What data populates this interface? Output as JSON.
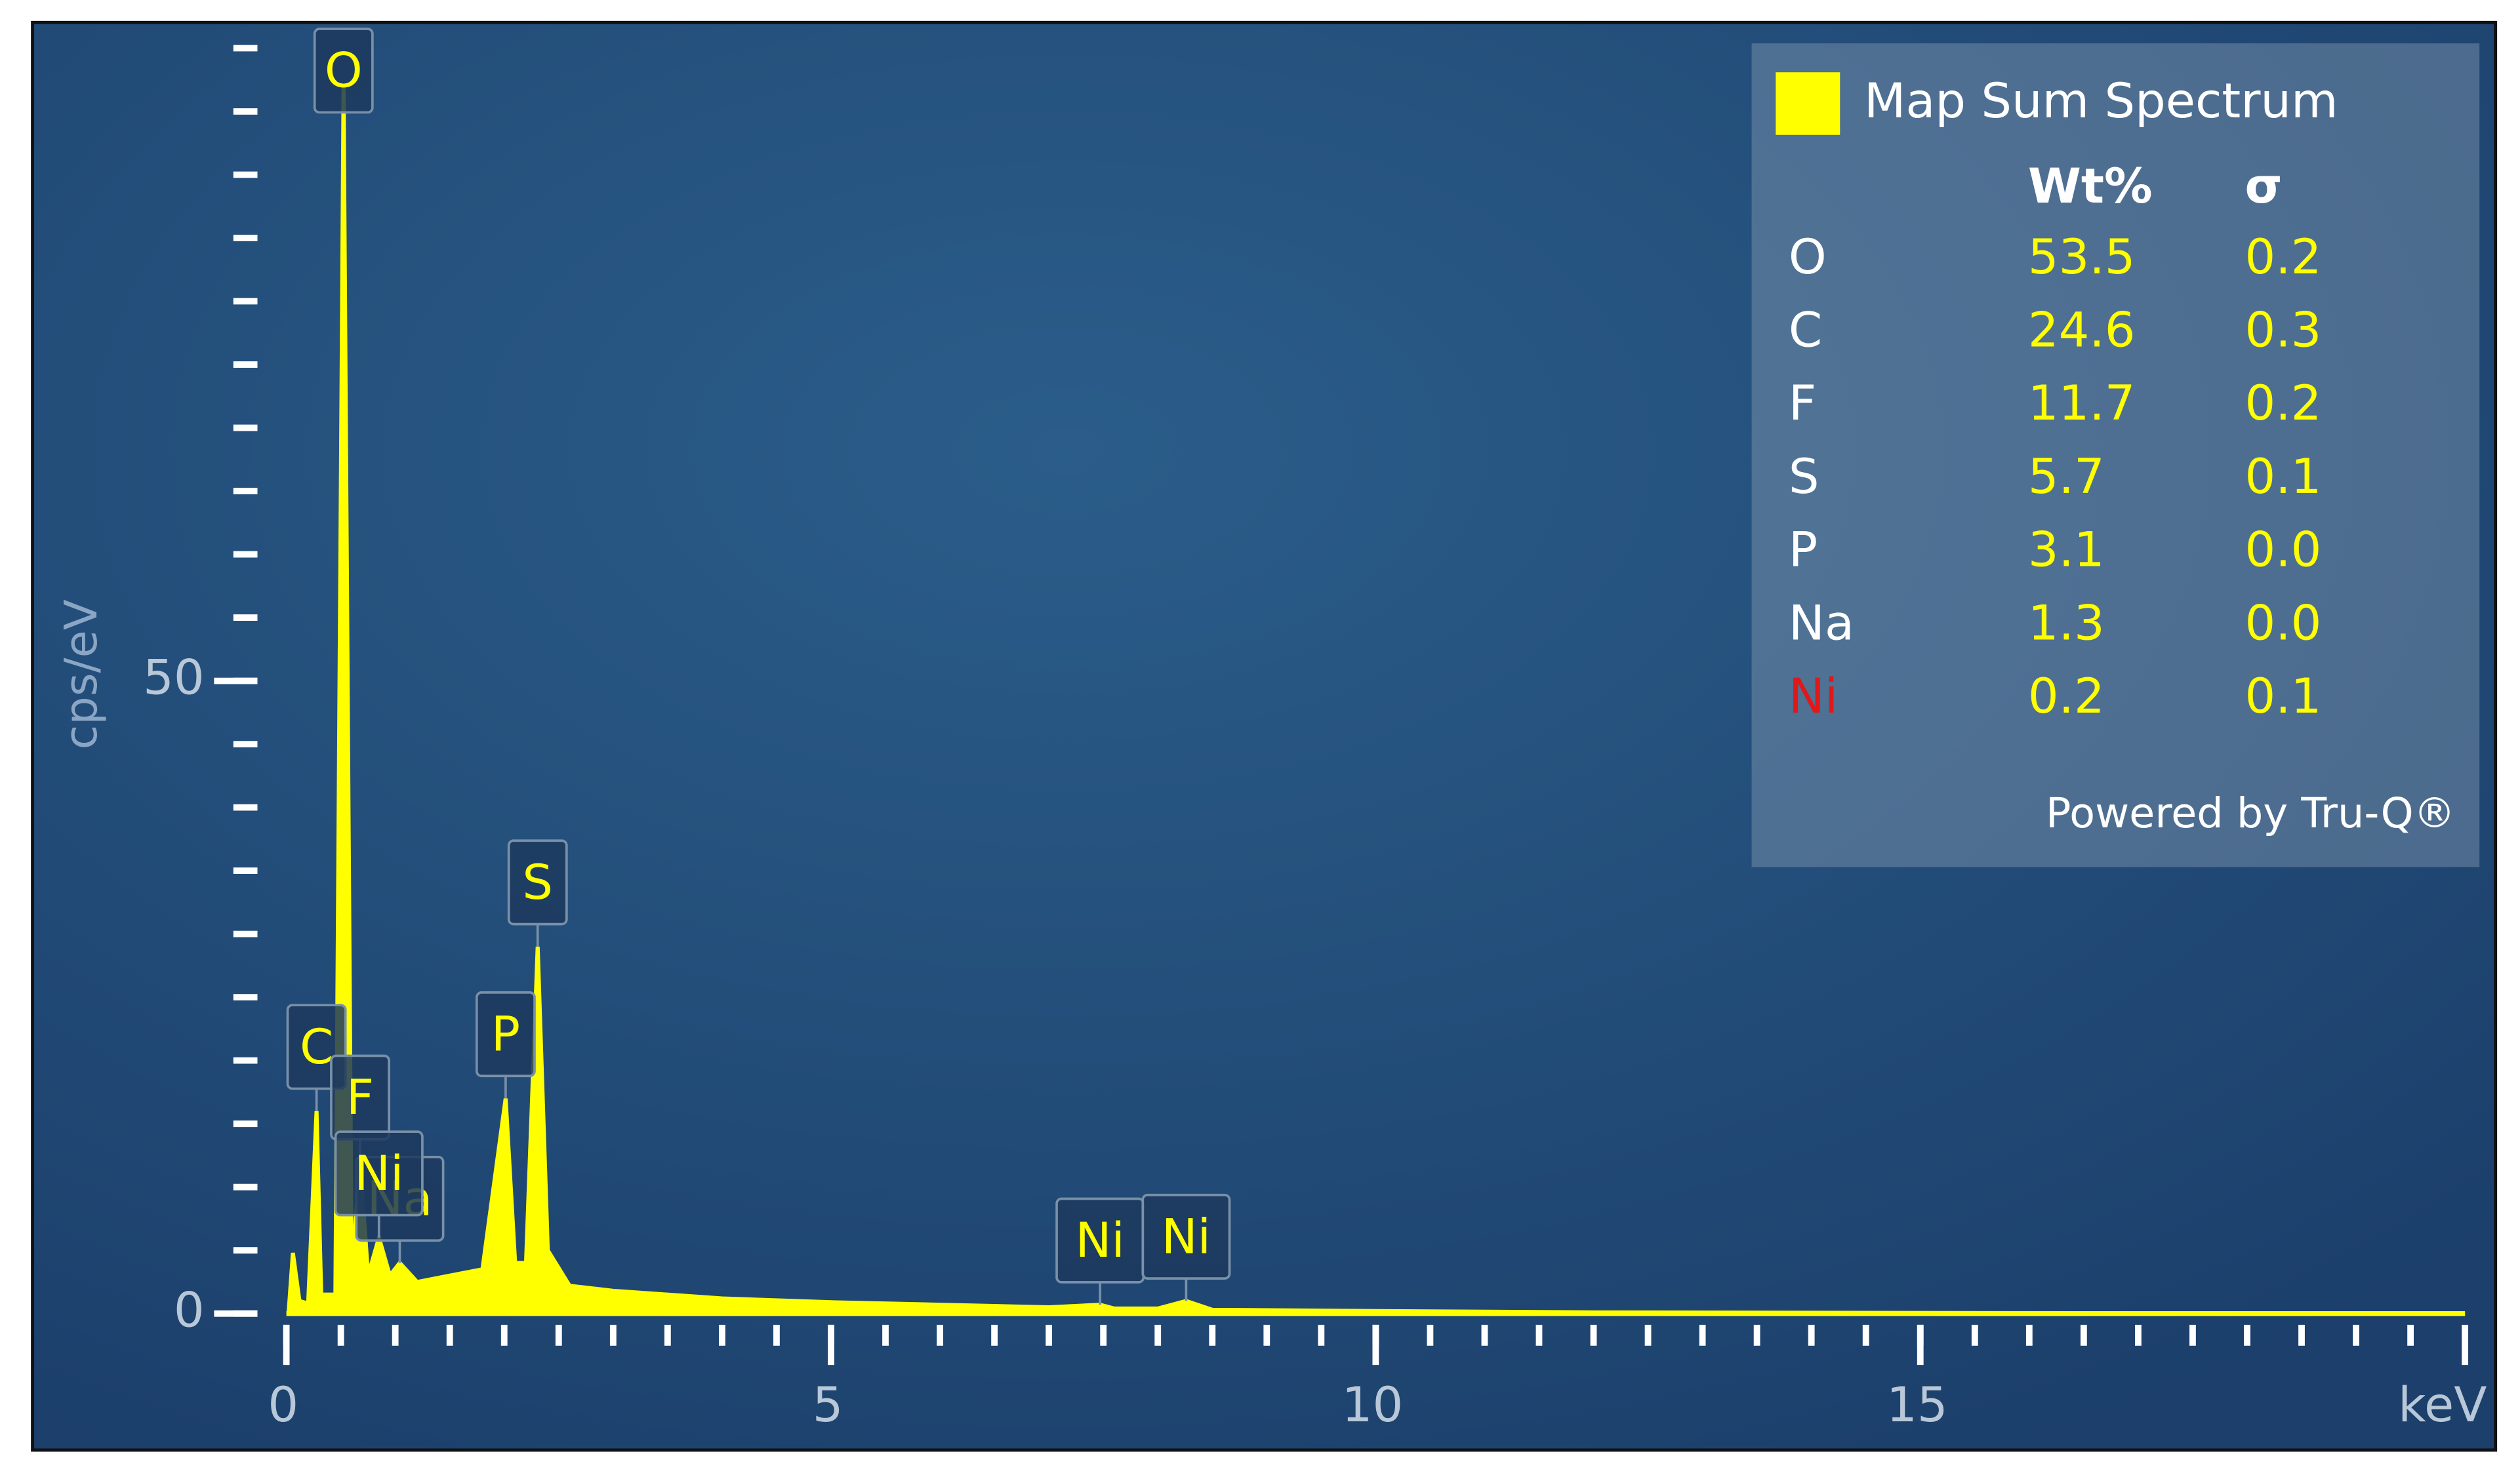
{
  "chart_data": {
    "type": "area",
    "color": "#ffff00",
    "ylabel": "cps/eV",
    "xlabel": "keV",
    "xlim": [
      0,
      20
    ],
    "ylim": [
      0,
      100
    ],
    "xticks": [
      0,
      5,
      10,
      15
    ],
    "yticks": [
      0,
      50
    ],
    "x_minor_step": 0.5,
    "y_minor_step": 5,
    "x": [
      0.02,
      0.06,
      0.12,
      0.2,
      0.277,
      0.32,
      0.45,
      0.525,
      0.6,
      0.677,
      0.75,
      0.85,
      0.95,
      1.041,
      1.2,
      1.5,
      1.8,
      2.013,
      2.1,
      2.2,
      2.307,
      2.4,
      2.6,
      3,
      4,
      5,
      6,
      7,
      7.47,
      7.6,
      8,
      8.26,
      8.5,
      10,
      12,
      15,
      20
    ],
    "values": [
      0,
      4.8,
      1,
      0.8,
      16,
      1.5,
      1.5,
      97,
      3,
      12,
      3,
      6,
      3,
      4,
      2.5,
      3,
      3.5,
      17,
      4,
      4,
      29,
      5,
      2.2,
      1.8,
      1.2,
      0.9,
      0.7,
      0.5,
      0.7,
      0.4,
      0.4,
      1.0,
      0.3,
      0.2,
      0.1,
      0.05,
      0
    ],
    "peak_labels": [
      {
        "text": "O",
        "x": 0.525
      },
      {
        "text": "C",
        "x": 0.277
      },
      {
        "text": "F",
        "x": 0.677
      },
      {
        "text": "Na",
        "x": 1.041
      },
      {
        "text": "Ni",
        "x": 0.85
      },
      {
        "text": "P",
        "x": 2.013
      },
      {
        "text": "S",
        "x": 2.307
      },
      {
        "text": "Ni",
        "x": 7.47
      },
      {
        "text": "Ni",
        "x": 8.26
      }
    ],
    "results": {
      "title": "Map Sum Spectrum",
      "columns": [
        "Wt%",
        "σ"
      ],
      "rows": [
        {
          "element": "O",
          "wt": "53.5",
          "sigma": "0.2",
          "color": "#ffffff"
        },
        {
          "element": "C",
          "wt": "24.6",
          "sigma": "0.3",
          "color": "#ffffff"
        },
        {
          "element": "F",
          "wt": "11.7",
          "sigma": "0.2",
          "color": "#ffffff"
        },
        {
          "element": "S",
          "wt": "5.7",
          "sigma": "0.1",
          "color": "#ffffff"
        },
        {
          "element": "P",
          "wt": "3.1",
          "sigma": "0.0",
          "color": "#ffffff"
        },
        {
          "element": "Na",
          "wt": "1.3",
          "sigma": "0.0",
          "color": "#ffffff"
        },
        {
          "element": "Ni",
          "wt": "0.2",
          "sigma": "0.1",
          "color": "#e01818"
        }
      ],
      "footer": "Powered by Tru-Q®"
    }
  }
}
